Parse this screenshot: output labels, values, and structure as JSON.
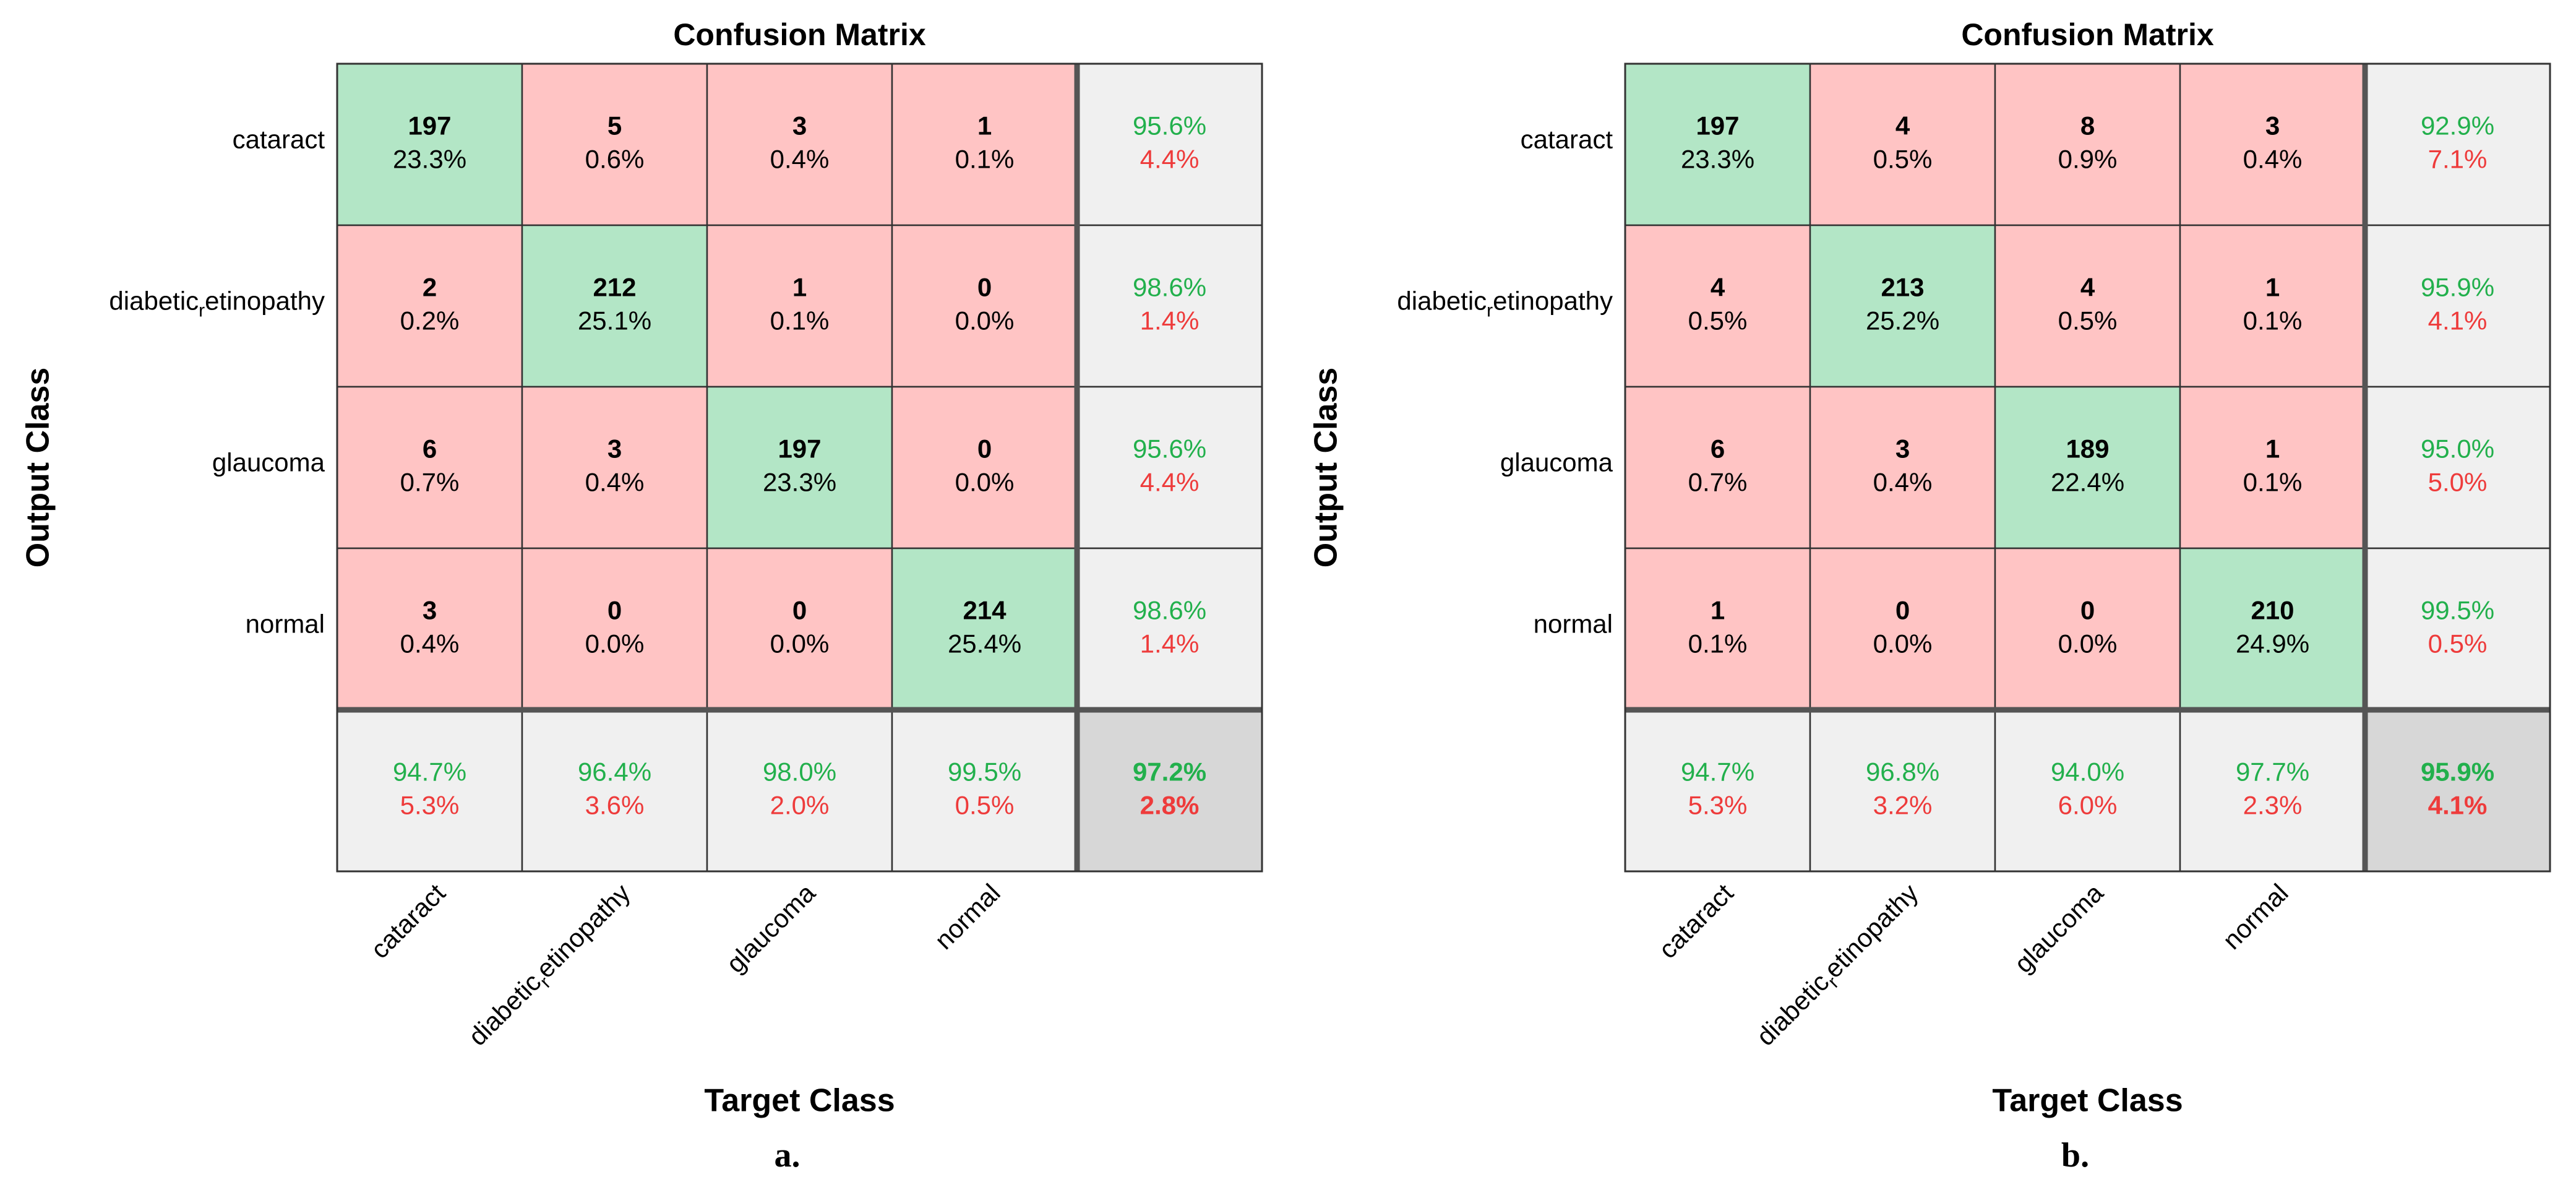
{
  "chart_data": [
    {
      "type": "heatmap",
      "subtype": "confusion_matrix",
      "title": "Confusion Matrix",
      "xlabel": "Target Class",
      "ylabel": "Output Class",
      "caption": "a.",
      "row_labels": [
        "cataract",
        "diabetic_retinopathy",
        "glaucoma",
        "normal"
      ],
      "col_labels": [
        "cataract",
        "diabetic_retinopathy",
        "glaucoma",
        "normal"
      ],
      "counts": [
        [
          197,
          5,
          3,
          1
        ],
        [
          2,
          212,
          1,
          0
        ],
        [
          6,
          3,
          197,
          0
        ],
        [
          3,
          0,
          0,
          214
        ]
      ],
      "percents": [
        [
          "23.3%",
          "0.6%",
          "0.4%",
          "0.1%"
        ],
        [
          "0.2%",
          "25.1%",
          "0.1%",
          "0.0%"
        ],
        [
          "0.7%",
          "0.4%",
          "23.3%",
          "0.0%"
        ],
        [
          "0.4%",
          "0.0%",
          "0.0%",
          "25.4%"
        ]
      ],
      "row_summary": [
        [
          "95.6%",
          "4.4%"
        ],
        [
          "98.6%",
          "1.4%"
        ],
        [
          "95.6%",
          "4.4%"
        ],
        [
          "98.6%",
          "1.4%"
        ]
      ],
      "col_summary": [
        [
          "94.7%",
          "5.3%"
        ],
        [
          "96.4%",
          "3.6%"
        ],
        [
          "98.0%",
          "2.0%"
        ],
        [
          "99.5%",
          "0.5%"
        ]
      ],
      "overall": [
        "97.2%",
        "2.8%"
      ]
    },
    {
      "type": "heatmap",
      "subtype": "confusion_matrix",
      "title": "Confusion Matrix",
      "xlabel": "Target Class",
      "ylabel": "Output Class",
      "caption": "b.",
      "row_labels": [
        "cataract",
        "diabetic_retinopathy",
        "glaucoma",
        "normal"
      ],
      "col_labels": [
        "cataract",
        "diabetic_retinopathy",
        "glaucoma",
        "normal"
      ],
      "counts": [
        [
          197,
          4,
          8,
          3
        ],
        [
          4,
          213,
          4,
          1
        ],
        [
          6,
          3,
          189,
          1
        ],
        [
          1,
          0,
          0,
          210
        ]
      ],
      "percents": [
        [
          "23.3%",
          "0.5%",
          "0.9%",
          "0.4%"
        ],
        [
          "0.5%",
          "25.2%",
          "0.5%",
          "0.1%"
        ],
        [
          "0.7%",
          "0.4%",
          "22.4%",
          "0.1%"
        ],
        [
          "0.1%",
          "0.0%",
          "0.0%",
          "24.9%"
        ]
      ],
      "row_summary": [
        [
          "92.9%",
          "7.1%"
        ],
        [
          "95.9%",
          "4.1%"
        ],
        [
          "95.0%",
          "5.0%"
        ],
        [
          "99.5%",
          "0.5%"
        ]
      ],
      "col_summary": [
        [
          "94.7%",
          "5.3%"
        ],
        [
          "96.8%",
          "3.2%"
        ],
        [
          "94.0%",
          "6.0%"
        ],
        [
          "97.7%",
          "2.3%"
        ]
      ],
      "overall": [
        "95.9%",
        "4.1%"
      ]
    }
  ],
  "colors": {
    "correct": "#b3e6c6",
    "wrong": "#ffc4c4",
    "summary": "#f0f0f0",
    "overall": "#d7d7d7",
    "green_text": "#22b04c",
    "red_text": "#ee3b3b",
    "grid": "#333333",
    "text": "#000000"
  }
}
